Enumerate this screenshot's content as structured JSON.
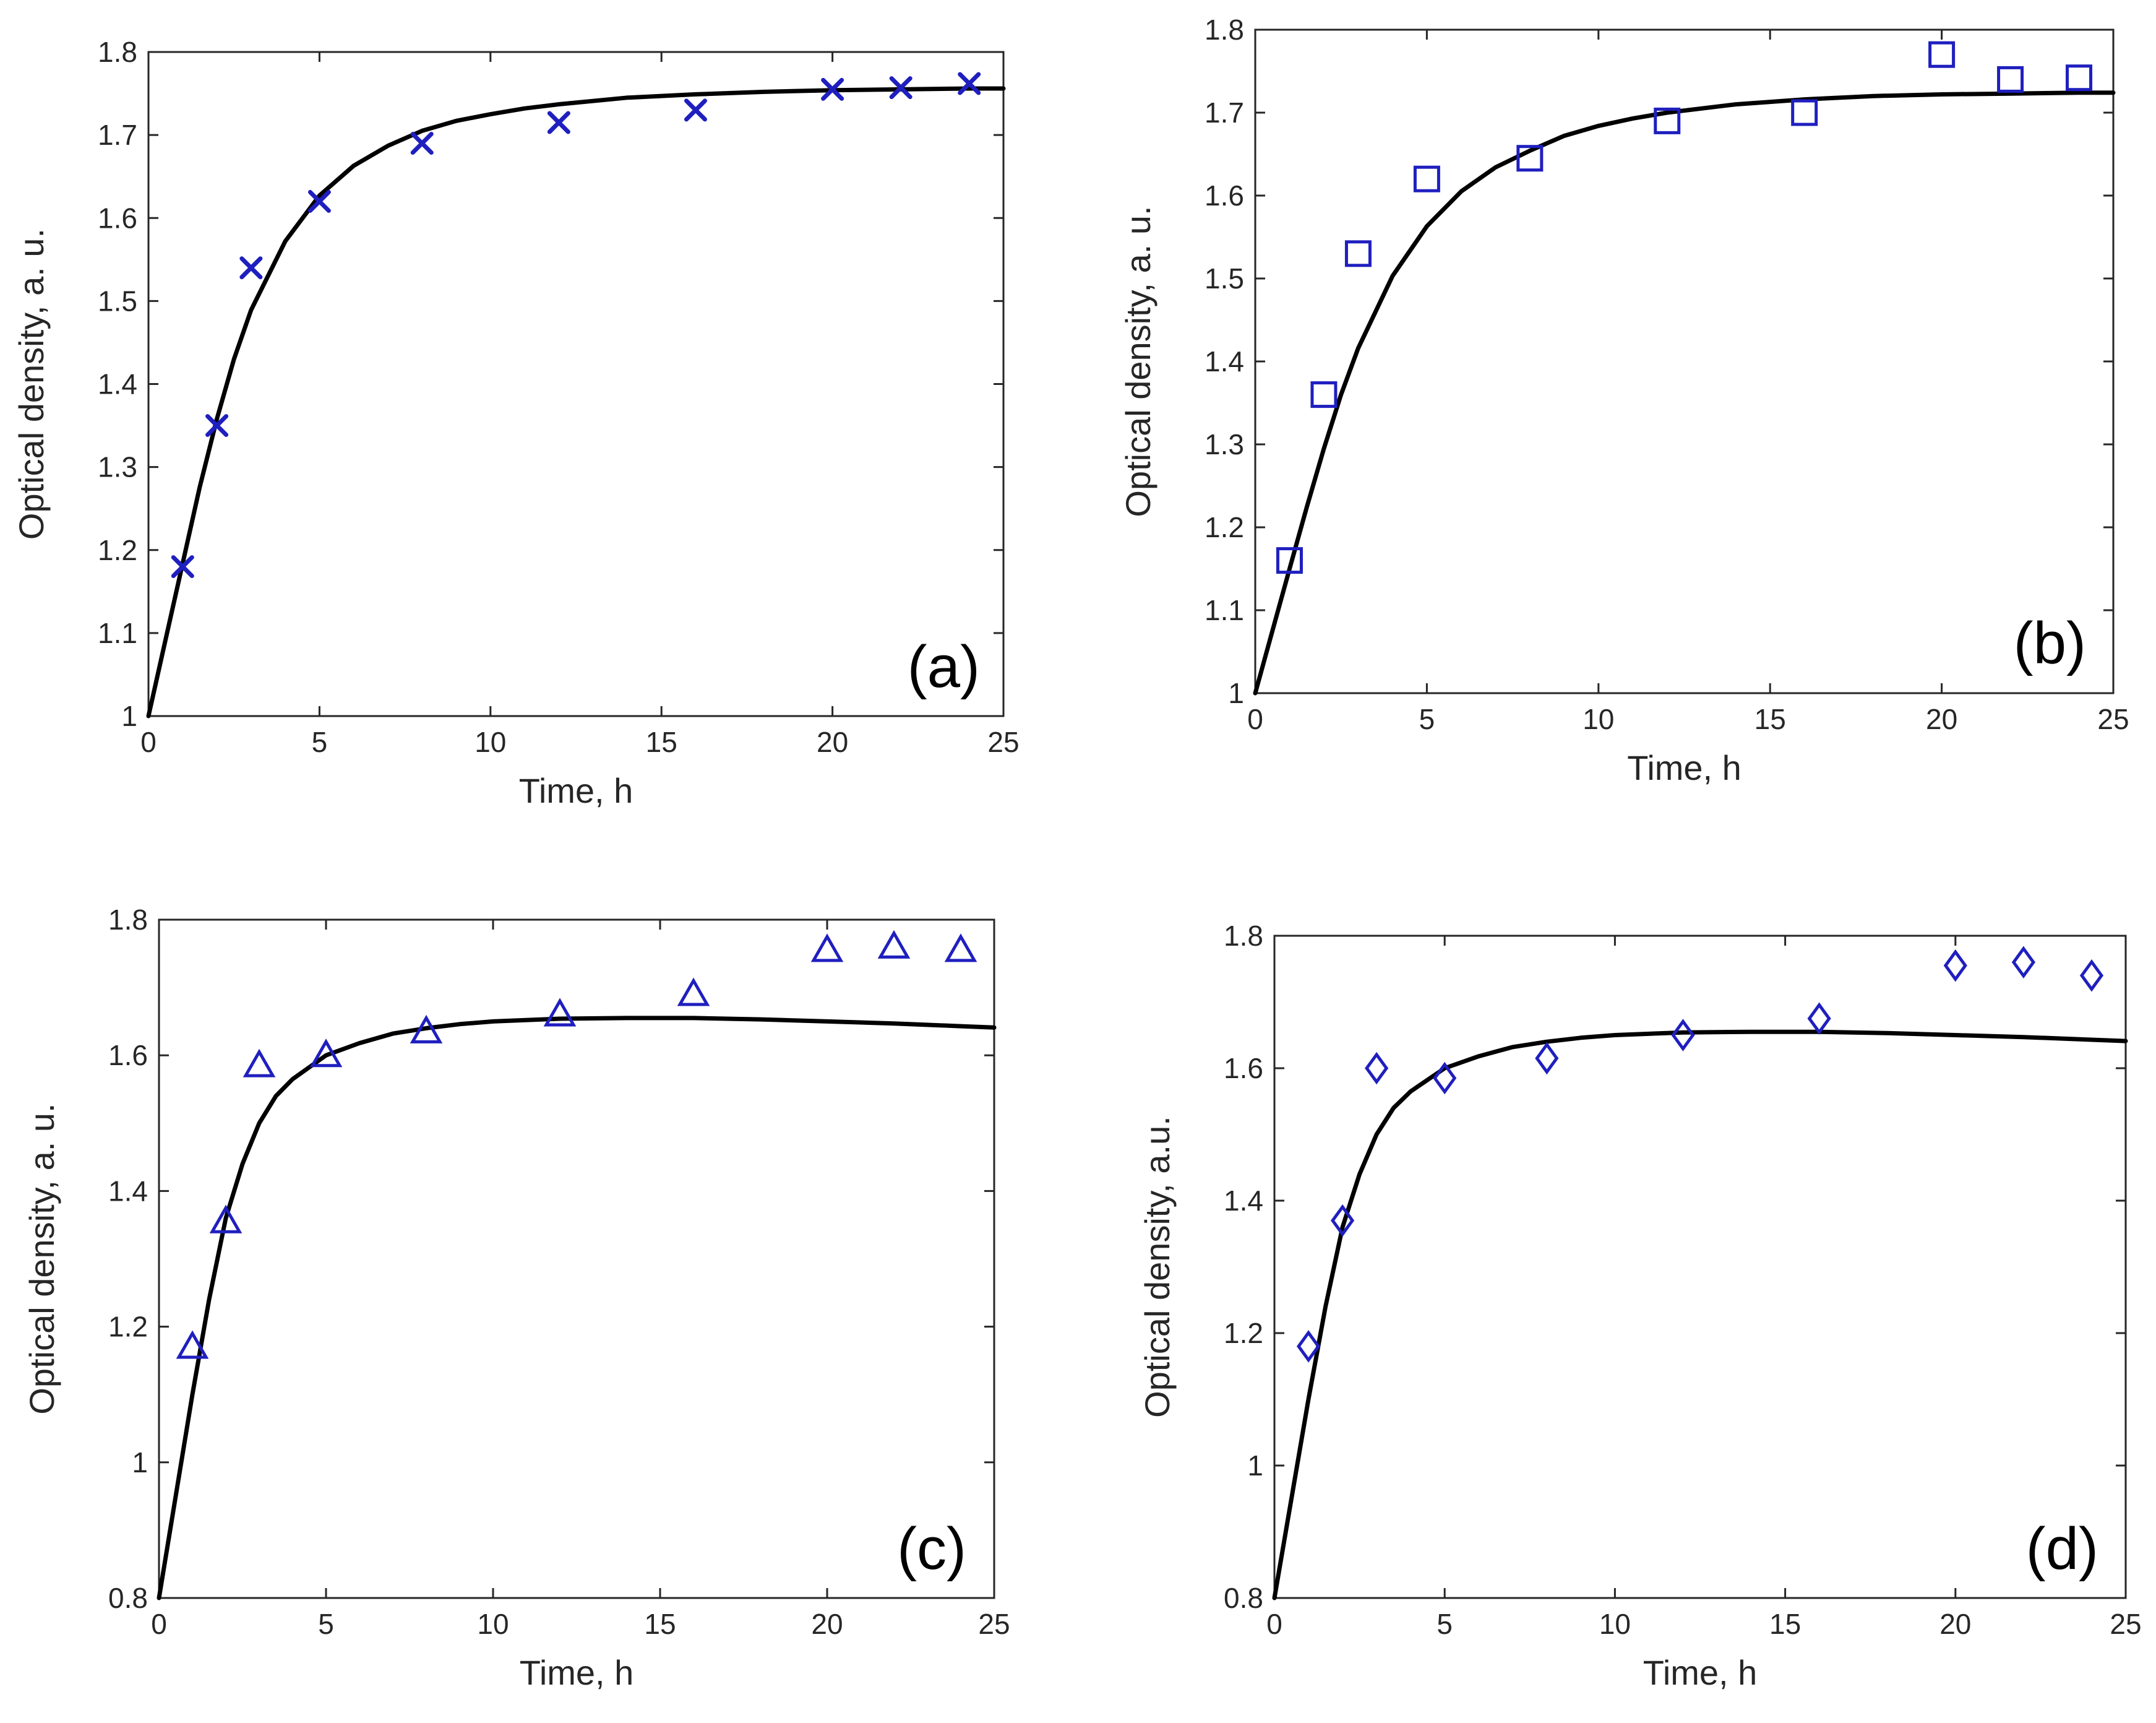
{
  "colors": {
    "marker": "#1f1fbf",
    "fit_line": "#000000",
    "axis": "#262626"
  },
  "chart_data": [
    {
      "type": "scatter",
      "panel_label": "(a)",
      "xlabel": "Time, h",
      "ylabel": "Optical density, a. u.",
      "xlim": [
        0,
        25
      ],
      "ylim": [
        1,
        1.8
      ],
      "xticks": [
        0,
        5,
        10,
        15,
        20,
        25
      ],
      "yticks": [
        1,
        1.1,
        1.2,
        1.3,
        1.4,
        1.5,
        1.6,
        1.7,
        1.8
      ],
      "xtick_labels": [
        "0",
        "5",
        "10",
        "15",
        "20",
        "25"
      ],
      "ytick_labels": [
        "1",
        "1.1",
        "1.2",
        "1.3",
        "1.4",
        "1.5",
        "1.6",
        "1.7",
        "1.8"
      ],
      "marker": "x",
      "x": [
        1,
        2,
        3,
        5,
        8,
        12,
        16,
        20,
        22,
        24
      ],
      "y": [
        1.18,
        1.35,
        1.54,
        1.62,
        1.69,
        1.715,
        1.73,
        1.755,
        1.757,
        1.762
      ],
      "fit": {
        "x": [
          0,
          0.5,
          1,
          1.5,
          2,
          2.5,
          3,
          4,
          5,
          6,
          7,
          8,
          9,
          10,
          11,
          12,
          14,
          16,
          18,
          20,
          22,
          24,
          25
        ],
        "y": [
          1,
          1.092,
          1.184,
          1.276,
          1.358,
          1.43,
          1.489,
          1.572,
          1.627,
          1.663,
          1.687,
          1.705,
          1.717,
          1.725,
          1.732,
          1.737,
          1.745,
          1.749,
          1.752,
          1.754,
          1.755,
          1.756,
          1.756
        ]
      }
    },
    {
      "type": "scatter",
      "panel_label": "(b)",
      "xlabel": "Time, h",
      "ylabel": "Optical density, a. u.",
      "xlim": [
        0,
        25
      ],
      "ylim": [
        1,
        1.8
      ],
      "xticks": [
        0,
        5,
        10,
        15,
        20,
        25
      ],
      "yticks": [
        1,
        1.1,
        1.2,
        1.3,
        1.4,
        1.5,
        1.6,
        1.7,
        1.8
      ],
      "xtick_labels": [
        "0",
        "5",
        "10",
        "15",
        "20",
        "25"
      ],
      "ytick_labels": [
        "1",
        "1.1",
        "1.2",
        "1.3",
        "1.4",
        "1.5",
        "1.6",
        "1.7",
        "1.8"
      ],
      "marker": "square",
      "x": [
        1,
        2,
        3,
        5,
        8,
        12,
        16,
        20,
        22,
        24
      ],
      "y": [
        1.16,
        1.36,
        1.53,
        1.62,
        1.645,
        1.69,
        1.7,
        1.77,
        1.74,
        1.742
      ],
      "fit": {
        "x": [
          0,
          0.5,
          1,
          1.5,
          2,
          2.5,
          3,
          4,
          5,
          6,
          7,
          8,
          9,
          10,
          11,
          12,
          14,
          16,
          18,
          20,
          22,
          24,
          25
        ],
        "y": [
          1,
          1.075,
          1.15,
          1.224,
          1.295,
          1.36,
          1.416,
          1.503,
          1.563,
          1.605,
          1.634,
          1.654,
          1.672,
          1.684,
          1.693,
          1.7,
          1.71,
          1.716,
          1.72,
          1.722,
          1.723,
          1.724,
          1.724
        ]
      }
    },
    {
      "type": "scatter",
      "panel_label": "(c)",
      "xlabel": "Time, h",
      "ylabel": "Optical density, a. u.",
      "xlim": [
        0,
        25
      ],
      "ylim": [
        0.8,
        1.8
      ],
      "xticks": [
        0,
        5,
        10,
        15,
        20,
        25
      ],
      "yticks": [
        0.8,
        1.0,
        1.2,
        1.4,
        1.6,
        1.8
      ],
      "xtick_labels": [
        "0",
        "5",
        "10",
        "15",
        "20",
        "25"
      ],
      "ytick_labels": [
        "0.8",
        "1",
        "1.2",
        "1.4",
        "1.6",
        "1.8"
      ],
      "marker": "triangle",
      "x": [
        1,
        2,
        3,
        5,
        8,
        12,
        16,
        20,
        22,
        24
      ],
      "y": [
        1.17,
        1.355,
        1.585,
        1.6,
        1.635,
        1.66,
        1.69,
        1.755,
        1.76,
        1.755
      ],
      "fit": {
        "x": [
          0,
          0.5,
          1,
          1.5,
          2,
          2.5,
          3,
          3.5,
          4,
          5,
          6,
          7,
          8,
          9,
          10,
          12,
          14,
          16,
          18,
          20,
          22,
          24,
          25
        ],
        "y": [
          0.8,
          0.95,
          1.1,
          1.24,
          1.36,
          1.44,
          1.5,
          1.54,
          1.565,
          1.6,
          1.618,
          1.632,
          1.64,
          1.646,
          1.65,
          1.654,
          1.655,
          1.655,
          1.653,
          1.65,
          1.647,
          1.643,
          1.641
        ]
      }
    },
    {
      "type": "scatter",
      "panel_label": "(d)",
      "xlabel": "Time, h",
      "ylabel": "Optical density, a.u.",
      "xlim": [
        0,
        25
      ],
      "ylim": [
        0.8,
        1.8
      ],
      "xticks": [
        0,
        5,
        10,
        15,
        20,
        25
      ],
      "yticks": [
        0.8,
        1.0,
        1.2,
        1.4,
        1.6,
        1.8
      ],
      "xtick_labels": [
        "0",
        "5",
        "10",
        "15",
        "20",
        "25"
      ],
      "ytick_labels": [
        "0.8",
        "1",
        "1.2",
        "1.4",
        "1.6",
        "1.8"
      ],
      "marker": "diamond",
      "x": [
        1,
        2,
        3,
        5,
        8,
        12,
        16,
        20,
        22,
        24
      ],
      "y": [
        1.18,
        1.37,
        1.6,
        1.585,
        1.615,
        1.65,
        1.675,
        1.755,
        1.76,
        1.74
      ],
      "fit": {
        "x": [
          0,
          0.5,
          1,
          1.5,
          2,
          2.5,
          3,
          3.5,
          4,
          5,
          6,
          7,
          8,
          9,
          10,
          12,
          14,
          16,
          18,
          20,
          22,
          24,
          25
        ],
        "y": [
          0.8,
          0.95,
          1.1,
          1.24,
          1.36,
          1.44,
          1.5,
          1.54,
          1.565,
          1.6,
          1.618,
          1.632,
          1.64,
          1.646,
          1.65,
          1.654,
          1.655,
          1.655,
          1.653,
          1.65,
          1.647,
          1.643,
          1.641
        ]
      }
    }
  ]
}
